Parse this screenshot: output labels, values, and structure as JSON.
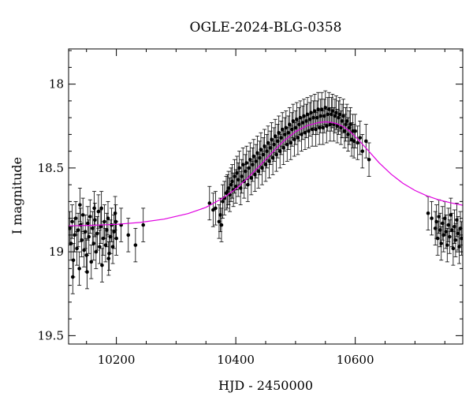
{
  "chart_data": {
    "type": "scatter",
    "title": "OGLE-2024-BLG-0358",
    "xlabel": "HJD - 2450000",
    "ylabel": "I magnitude",
    "xlim": [
      10120,
      10780
    ],
    "ylim": [
      19.55,
      17.79
    ],
    "y_inverted": true,
    "x_ticks": [
      10200,
      10400,
      10600
    ],
    "y_ticks": [
      18,
      18.5,
      19,
      19.5
    ],
    "y_tick_labels": [
      "18",
      "18.5",
      "19",
      "19.5"
    ],
    "x_minor_step": 50,
    "y_minor_step": 0.1,
    "grid": false,
    "colors": {
      "points": "#000000",
      "model": "#e000e0",
      "frame": "#000000"
    },
    "series": [
      {
        "name": "observations",
        "style": "points-with-errorbars",
        "error_bar_size_mag": 0.1,
        "points": [
          [
            10122,
            18.86
          ],
          [
            10124,
            18.95
          ],
          [
            10126,
            18.82
          ],
          [
            10128,
            19.05
          ],
          [
            10130,
            18.9
          ],
          [
            10132,
            18.8
          ],
          [
            10134,
            18.98
          ],
          [
            10136,
            18.87
          ],
          [
            10138,
            19.1
          ],
          [
            10140,
            18.84
          ],
          [
            10142,
            18.93
          ],
          [
            10144,
            18.78
          ],
          [
            10146,
            18.99
          ],
          [
            10148,
            18.88
          ],
          [
            10150,
            19.02
          ],
          [
            10152,
            18.83
          ],
          [
            10154,
            18.91
          ],
          [
            10156,
            18.79
          ],
          [
            10158,
            19.06
          ],
          [
            10160,
            18.86
          ],
          [
            10162,
            18.95
          ],
          [
            10164,
            18.81
          ],
          [
            10166,
            19.0
          ],
          [
            10168,
            18.89
          ],
          [
            10170,
            18.76
          ],
          [
            10172,
            18.97
          ],
          [
            10174,
            18.85
          ],
          [
            10176,
            19.08
          ],
          [
            10178,
            18.92
          ],
          [
            10180,
            18.82
          ],
          [
            10182,
            18.96
          ],
          [
            10184,
            18.87
          ],
          [
            10186,
            18.8
          ],
          [
            10188,
            19.01
          ],
          [
            10190,
            18.91
          ],
          [
            10192,
            18.84
          ],
          [
            10194,
            18.97
          ],
          [
            10196,
            18.88
          ],
          [
            10198,
            18.77
          ],
          [
            10200,
            18.92
          ],
          [
            10127,
            19.15
          ],
          [
            10139,
            18.72
          ],
          [
            10151,
            19.12
          ],
          [
            10163,
            18.74
          ],
          [
            10175,
            18.74
          ],
          [
            10187,
            19.04
          ],
          [
            10199,
            18.82
          ],
          [
            10208,
            18.84
          ],
          [
            10220,
            18.9
          ],
          [
            10232,
            18.96
          ],
          [
            10245,
            18.84
          ],
          [
            10356,
            18.71
          ],
          [
            10362,
            18.75
          ],
          [
            10366,
            18.74
          ],
          [
            10372,
            18.82
          ],
          [
            10374,
            18.78
          ],
          [
            10376,
            18.84
          ],
          [
            10378,
            18.7
          ],
          [
            10381,
            18.68
          ],
          [
            10384,
            18.65
          ],
          [
            10386,
            18.64
          ],
          [
            10388,
            18.62
          ],
          [
            10390,
            18.66
          ],
          [
            10392,
            18.6
          ],
          [
            10394,
            18.58
          ],
          [
            10396,
            18.63
          ],
          [
            10398,
            18.55
          ],
          [
            10400,
            18.61
          ],
          [
            10402,
            18.53
          ],
          [
            10404,
            18.57
          ],
          [
            10406,
            18.5
          ],
          [
            10408,
            18.62
          ],
          [
            10410,
            18.55
          ],
          [
            10412,
            18.48
          ],
          [
            10414,
            18.58
          ],
          [
            10416,
            18.52
          ],
          [
            10418,
            18.47
          ],
          [
            10420,
            18.6
          ],
          [
            10422,
            18.5
          ],
          [
            10424,
            18.45
          ],
          [
            10426,
            18.56
          ],
          [
            10428,
            18.48
          ],
          [
            10430,
            18.43
          ],
          [
            10432,
            18.54
          ],
          [
            10434,
            18.46
          ],
          [
            10436,
            18.41
          ],
          [
            10438,
            18.52
          ],
          [
            10440,
            18.44
          ],
          [
            10442,
            18.39
          ],
          [
            10444,
            18.5
          ],
          [
            10446,
            18.42
          ],
          [
            10448,
            18.37
          ],
          [
            10450,
            18.48
          ],
          [
            10452,
            18.4
          ],
          [
            10454,
            18.35
          ],
          [
            10456,
            18.46
          ],
          [
            10458,
            18.38
          ],
          [
            10460,
            18.33
          ],
          [
            10462,
            18.44
          ],
          [
            10464,
            18.36
          ],
          [
            10466,
            18.31
          ],
          [
            10468,
            18.42
          ],
          [
            10470,
            18.34
          ],
          [
            10472,
            18.29
          ],
          [
            10474,
            18.4
          ],
          [
            10476,
            18.32
          ],
          [
            10478,
            18.27
          ],
          [
            10480,
            18.38
          ],
          [
            10482,
            18.3
          ],
          [
            10484,
            18.26
          ],
          [
            10486,
            18.36
          ],
          [
            10488,
            18.29
          ],
          [
            10490,
            18.24
          ],
          [
            10492,
            18.35
          ],
          [
            10494,
            18.27
          ],
          [
            10496,
            18.22
          ],
          [
            10498,
            18.33
          ],
          [
            10500,
            18.26
          ],
          [
            10502,
            18.21
          ],
          [
            10504,
            18.32
          ],
          [
            10506,
            18.24
          ],
          [
            10508,
            18.2
          ],
          [
            10510,
            18.3
          ],
          [
            10512,
            18.23
          ],
          [
            10514,
            18.19
          ],
          [
            10516,
            18.29
          ],
          [
            10518,
            18.22
          ],
          [
            10520,
            18.18
          ],
          [
            10522,
            18.28
          ],
          [
            10524,
            18.21
          ],
          [
            10526,
            18.17
          ],
          [
            10528,
            18.27
          ],
          [
            10530,
            18.2
          ],
          [
            10532,
            18.16
          ],
          [
            10534,
            18.27
          ],
          [
            10536,
            18.2
          ],
          [
            10538,
            18.15
          ],
          [
            10540,
            18.26
          ],
          [
            10542,
            18.19
          ],
          [
            10544,
            18.15
          ],
          [
            10546,
            18.26
          ],
          [
            10548,
            18.19
          ],
          [
            10550,
            18.14
          ],
          [
            10552,
            18.25
          ],
          [
            10554,
            18.18
          ],
          [
            10556,
            18.15
          ],
          [
            10558,
            18.24
          ],
          [
            10560,
            18.18
          ],
          [
            10562,
            18.16
          ],
          [
            10564,
            18.24
          ],
          [
            10566,
            18.19
          ],
          [
            10568,
            18.17
          ],
          [
            10570,
            18.25
          ],
          [
            10572,
            18.2
          ],
          [
            10574,
            18.18
          ],
          [
            10576,
            18.26
          ],
          [
            10578,
            18.22
          ],
          [
            10580,
            18.19
          ],
          [
            10582,
            18.28
          ],
          [
            10584,
            18.24
          ],
          [
            10586,
            18.22
          ],
          [
            10588,
            18.3
          ],
          [
            10590,
            18.26
          ],
          [
            10592,
            18.24
          ],
          [
            10594,
            18.33
          ],
          [
            10596,
            18.28
          ],
          [
            10598,
            18.34
          ],
          [
            10600,
            18.28
          ],
          [
            10604,
            18.35
          ],
          [
            10608,
            18.32
          ],
          [
            10612,
            18.4
          ],
          [
            10618,
            18.34
          ],
          [
            10623,
            18.45
          ],
          [
            10722,
            18.77
          ],
          [
            10728,
            18.8
          ],
          [
            10734,
            18.86
          ],
          [
            10736,
            18.82
          ],
          [
            10738,
            18.92
          ],
          [
            10740,
            18.79
          ],
          [
            10742,
            18.87
          ],
          [
            10744,
            18.95
          ],
          [
            10746,
            18.83
          ],
          [
            10748,
            18.9
          ],
          [
            10750,
            18.8
          ],
          [
            10752,
            18.88
          ],
          [
            10754,
            18.96
          ],
          [
            10756,
            18.84
          ],
          [
            10758,
            18.91
          ],
          [
            10760,
            18.78
          ],
          [
            10762,
            18.87
          ],
          [
            10764,
            18.98
          ],
          [
            10766,
            18.85
          ],
          [
            10768,
            18.93
          ],
          [
            10770,
            18.81
          ],
          [
            10772,
            18.89
          ],
          [
            10774,
            18.97
          ],
          [
            10776,
            18.86
          ],
          [
            10778,
            18.92
          ]
        ]
      },
      {
        "name": "model",
        "style": "line",
        "x": [
          10120,
          10160,
          10200,
          10240,
          10280,
          10320,
          10350,
          10380,
          10400,
          10420,
          10440,
          10460,
          10480,
          10500,
          10520,
          10540,
          10550,
          10560,
          10570,
          10580,
          10590,
          10600,
          10620,
          10640,
          10660,
          10680,
          10700,
          10720,
          10740,
          10760,
          10780
        ],
        "y": [
          18.845,
          18.842,
          18.836,
          18.825,
          18.805,
          18.772,
          18.735,
          18.676,
          18.625,
          18.56,
          18.487,
          18.411,
          18.34,
          18.283,
          18.247,
          18.228,
          18.225,
          18.228,
          18.237,
          18.254,
          18.279,
          18.312,
          18.389,
          18.469,
          18.537,
          18.592,
          18.634,
          18.666,
          18.69,
          18.708,
          18.722
        ]
      }
    ]
  }
}
